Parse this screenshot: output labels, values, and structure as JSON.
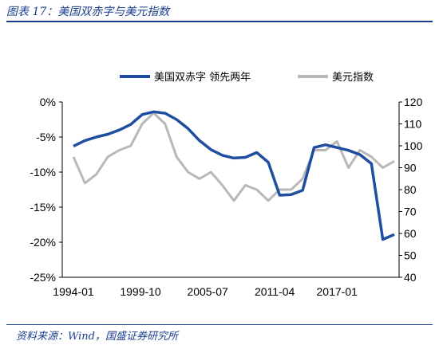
{
  "header": {
    "title": "图表 17：美国双赤字与美元指数"
  },
  "footer": {
    "source": "资料来源：Wind，国盛证券研究所"
  },
  "chart_data": {
    "type": "line",
    "x": [
      "1994-01",
      "1995-01",
      "1996-01",
      "1997-01",
      "1998-01",
      "1999-01",
      "2000-01",
      "2001-01",
      "2002-01",
      "2003-01",
      "2004-01",
      "2005-01",
      "2006-01",
      "2007-01",
      "2008-01",
      "2009-01",
      "2010-01",
      "2011-01",
      "2012-01",
      "2013-01",
      "2014-01",
      "2015-01",
      "2016-01",
      "2017-01",
      "2018-01",
      "2019-01",
      "2020-01",
      "2021-01",
      "2021-07"
    ],
    "x_tick_labels": [
      "1994-01",
      "1999-10",
      "2005-07",
      "2011-04",
      "2017-01"
    ],
    "left_axis": {
      "ylim": [
        -25,
        0
      ],
      "ticks": [
        "0%",
        "-5%",
        "-10%",
        "-15%",
        "-20%",
        "-25%"
      ]
    },
    "right_axis": {
      "ylim": [
        40,
        120
      ],
      "ticks": [
        "120",
        "110",
        "100",
        "90",
        "80",
        "70",
        "60",
        "50",
        "40"
      ]
    },
    "series": [
      {
        "name": "美国双赤字 领先两年",
        "axis": "left",
        "color": "#1f4ea0",
        "values": [
          -6.3,
          -5.5,
          -5.0,
          -4.6,
          -4.0,
          -3.2,
          -1.8,
          -1.4,
          -1.6,
          -2.5,
          -3.8,
          -5.5,
          -6.8,
          -7.6,
          -8.0,
          -7.9,
          -7.2,
          -8.6,
          -13.3,
          -13.2,
          -12.6,
          -6.5,
          -6.1,
          -6.5,
          -6.9,
          -7.5,
          -8.8,
          -19.6,
          -18.9
        ]
      },
      {
        "name": "美元指数",
        "axis": "right",
        "color": "#b8b8b8",
        "values": [
          95,
          83,
          87,
          95,
          98,
          100,
          110,
          115,
          110,
          95,
          88,
          85,
          88,
          82,
          75,
          82,
          80,
          75,
          80,
          80,
          85,
          98,
          98,
          102,
          90,
          98,
          95,
          90,
          93
        ]
      }
    ],
    "legend": {
      "position": "top"
    }
  }
}
